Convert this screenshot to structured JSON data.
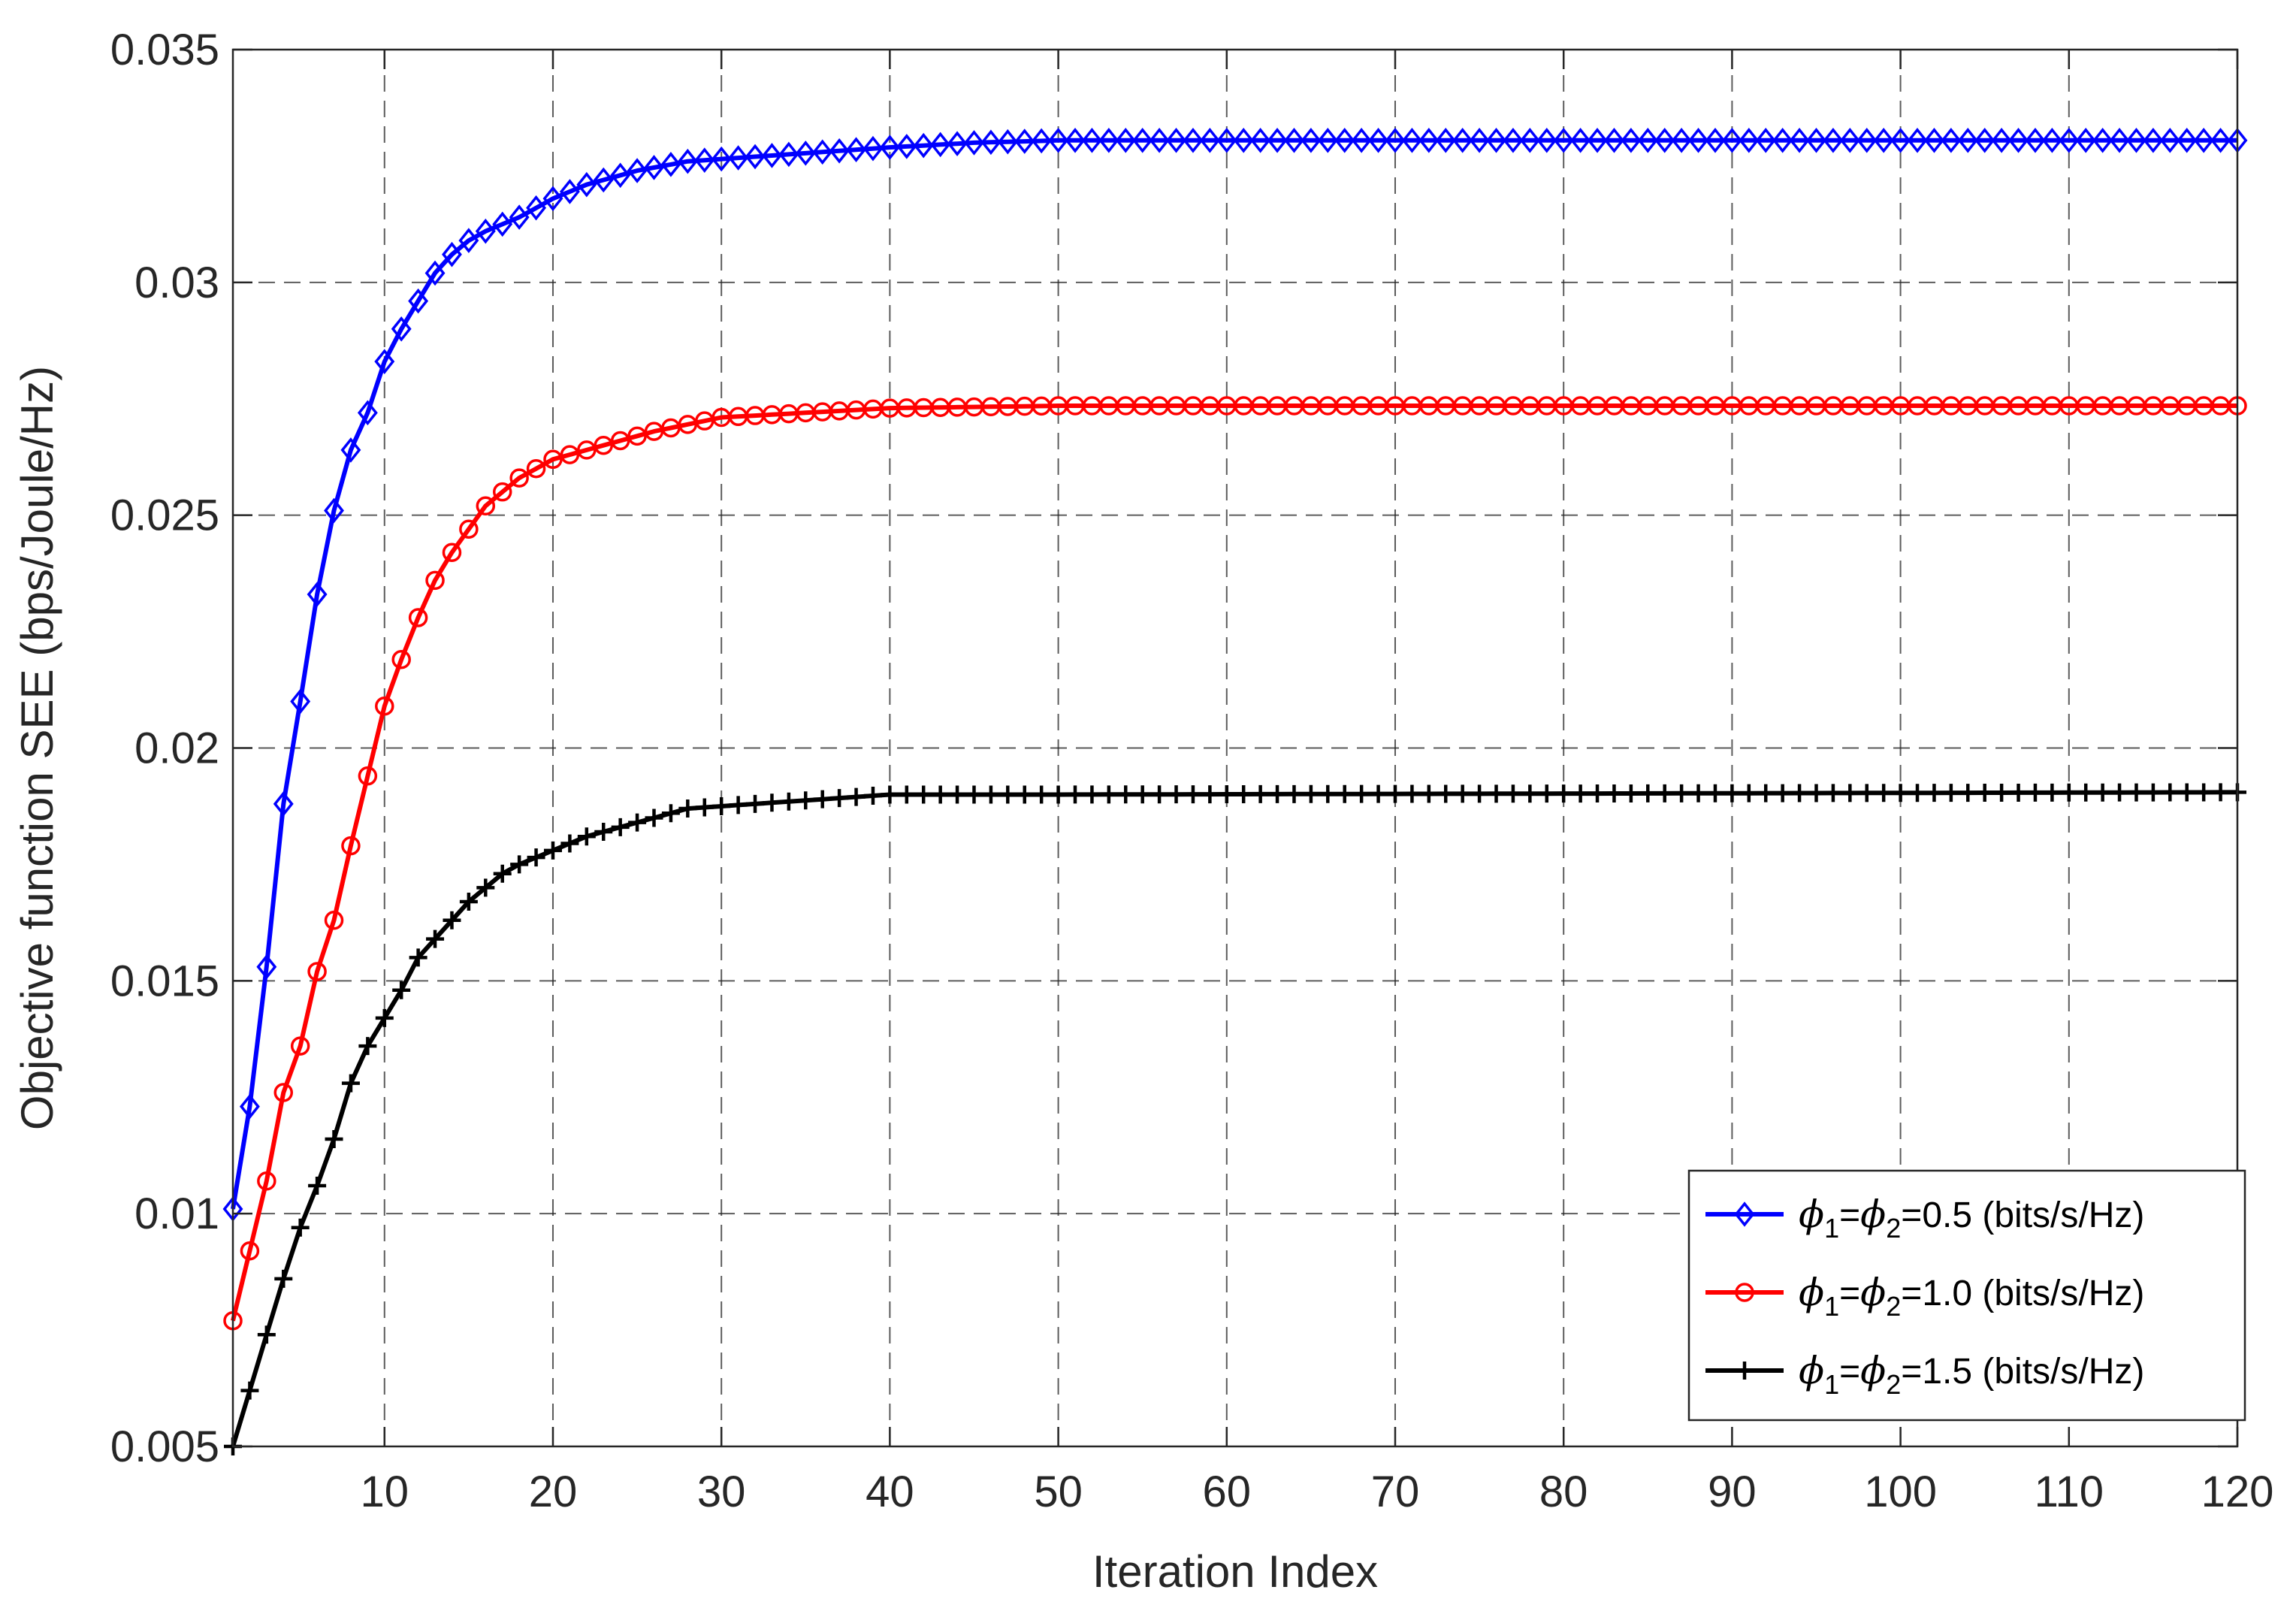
{
  "chart_data": {
    "type": "line",
    "title": "",
    "xlabel": "Iteration Index",
    "ylabel": "Objective function SEE (bps/Joule/Hz)",
    "xlim": [
      1,
      120
    ],
    "ylim": [
      0.005,
      0.035
    ],
    "xticks": [
      10,
      20,
      30,
      40,
      50,
      60,
      70,
      80,
      90,
      100,
      110,
      120
    ],
    "yticks": [
      0.005,
      0.01,
      0.015,
      0.02,
      0.025,
      0.03,
      0.035
    ],
    "ytick_labels": [
      "0.005",
      "0.01",
      "0.015",
      "0.02",
      "0.025",
      "0.03",
      "0.035"
    ],
    "grid": true,
    "legend_position": "bottom-right",
    "series": [
      {
        "name": "ϕ1=ϕ2=0.5 (bits/s/Hz)",
        "legend": {
          "pre": "ϕ",
          "s1": "1",
          "eq": "=",
          "pre2": "ϕ",
          "s2": "2",
          "post": "=0.5 (bits/s/Hz)"
        },
        "color": "#0000ff",
        "marker": "diamond",
        "anchors": [
          [
            1,
            0.0101
          ],
          [
            2,
            0.0123
          ],
          [
            3,
            0.0153
          ],
          [
            4,
            0.0188
          ],
          [
            5,
            0.021
          ],
          [
            6,
            0.0233
          ],
          [
            7,
            0.0251
          ],
          [
            8,
            0.0264
          ],
          [
            9,
            0.0272
          ],
          [
            10,
            0.0283
          ],
          [
            11,
            0.029
          ],
          [
            12,
            0.0296
          ],
          [
            13,
            0.0302
          ],
          [
            14,
            0.0306
          ],
          [
            15,
            0.0309
          ],
          [
            16,
            0.0311
          ],
          [
            18,
            0.0314
          ],
          [
            20,
            0.0318
          ],
          [
            22,
            0.0321
          ],
          [
            25,
            0.0324
          ],
          [
            28,
            0.0326
          ],
          [
            32,
            0.0327
          ],
          [
            36,
            0.0328
          ],
          [
            40,
            0.0329
          ],
          [
            45,
            0.033
          ],
          [
            50,
            0.03305
          ],
          [
            120,
            0.03305
          ]
        ]
      },
      {
        "name": "ϕ1=ϕ2=1.0 (bits/s/Hz)",
        "legend": {
          "pre": "ϕ",
          "s1": "1",
          "eq": "=",
          "pre2": "ϕ",
          "s2": "2",
          "post": "=1.0 (bits/s/Hz)"
        },
        "color": "#ff0000",
        "marker": "circle",
        "anchors": [
          [
            1,
            0.0077
          ],
          [
            2,
            0.0092
          ],
          [
            3,
            0.0107
          ],
          [
            4,
            0.0126
          ],
          [
            5,
            0.0136
          ],
          [
            6,
            0.0152
          ],
          [
            7,
            0.0163
          ],
          [
            8,
            0.0179
          ],
          [
            9,
            0.0194
          ],
          [
            10,
            0.0209
          ],
          [
            11,
            0.0219
          ],
          [
            12,
            0.0228
          ],
          [
            13,
            0.0236
          ],
          [
            14,
            0.0242
          ],
          [
            15,
            0.0247
          ],
          [
            16,
            0.0252
          ],
          [
            17,
            0.0255
          ],
          [
            18,
            0.0258
          ],
          [
            20,
            0.0262
          ],
          [
            23,
            0.0265
          ],
          [
            26,
            0.0268
          ],
          [
            30,
            0.0271
          ],
          [
            35,
            0.0272
          ],
          [
            40,
            0.0273
          ],
          [
            50,
            0.02735
          ],
          [
            120,
            0.02735
          ]
        ]
      },
      {
        "name": "ϕ1=ϕ2=1.5 (bits/s/Hz)",
        "legend": {
          "pre": "ϕ",
          "s1": "1",
          "eq": "=",
          "pre2": "ϕ",
          "s2": "2",
          "post": "=1.5 (bits/s/Hz)"
        },
        "color": "#000000",
        "marker": "plus",
        "anchors": [
          [
            1,
            0.005
          ],
          [
            2,
            0.0062
          ],
          [
            3,
            0.0074
          ],
          [
            4,
            0.0086
          ],
          [
            5,
            0.0097
          ],
          [
            6,
            0.0106
          ],
          [
            7,
            0.0116
          ],
          [
            8,
            0.0128
          ],
          [
            9,
            0.0136
          ],
          [
            10,
            0.0142
          ],
          [
            11,
            0.0148
          ],
          [
            12,
            0.0155
          ],
          [
            13,
            0.0159
          ],
          [
            14,
            0.0163
          ],
          [
            15,
            0.0167
          ],
          [
            16,
            0.017
          ],
          [
            17,
            0.0173
          ],
          [
            18,
            0.0175
          ],
          [
            20,
            0.0178
          ],
          [
            22,
            0.0181
          ],
          [
            25,
            0.0184
          ],
          [
            28,
            0.0187
          ],
          [
            32,
            0.0188
          ],
          [
            36,
            0.0189
          ],
          [
            40,
            0.019
          ],
          [
            50,
            0.019
          ],
          [
            120,
            0.01905
          ]
        ]
      }
    ]
  }
}
